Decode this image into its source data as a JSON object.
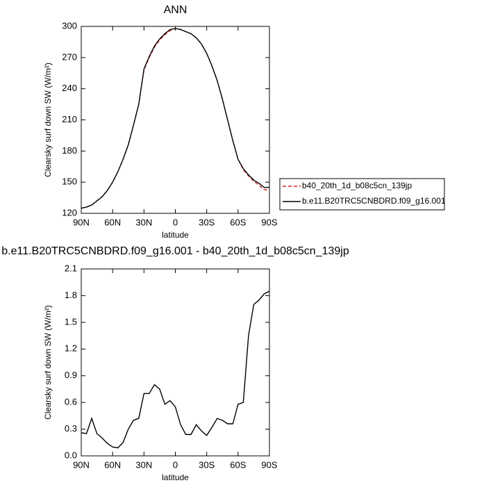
{
  "chart_data": [
    {
      "type": "line",
      "title": "ANN",
      "xlabel": "latitude",
      "ylabel": "Clearsky surf down SW (W/m²)",
      "x": [
        90,
        85,
        80,
        75,
        70,
        65,
        60,
        55,
        50,
        45,
        40,
        35,
        30,
        25,
        20,
        15,
        10,
        5,
        0,
        -5,
        -10,
        -15,
        -20,
        -25,
        -30,
        -35,
        -40,
        -45,
        -50,
        -55,
        -60,
        -65,
        -70,
        -75,
        -80,
        -85,
        -90
      ],
      "series": [
        {
          "name": "b40_20th_1d_b08c5cn_139jp",
          "color": "#d62020",
          "style": "dashed",
          "values": [
            125,
            126,
            128,
            132,
            136,
            142,
            150,
            160,
            172,
            186,
            205,
            225,
            258,
            270,
            280,
            287,
            292,
            296,
            298,
            297,
            295,
            293,
            289,
            283,
            274,
            262,
            248,
            230,
            210,
            190,
            172,
            162,
            156,
            151,
            147,
            143,
            142
          ]
        },
        {
          "name": "b.e11.B20TRC5CNBDRD.f09_g16.001",
          "color": "#000000",
          "style": "solid",
          "values": [
            125,
            126,
            128,
            132,
            136,
            142,
            150,
            160,
            172,
            186,
            205,
            225,
            259,
            271,
            281,
            288,
            293,
            297,
            298,
            297,
            295,
            293,
            289,
            283,
            274,
            262,
            248,
            230,
            210,
            190,
            172,
            163,
            157,
            152,
            149,
            145,
            145
          ]
        }
      ],
      "xlim": [
        90,
        -90
      ],
      "xticks": [
        {
          "value": 90,
          "label": "90N"
        },
        {
          "value": 60,
          "label": "60N"
        },
        {
          "value": 30,
          "label": "30N"
        },
        0,
        {
          "value": -30,
          "label": "30S"
        },
        {
          "value": -60,
          "label": "60S"
        },
        {
          "value": -90,
          "label": "90S"
        }
      ],
      "ylim": [
        120,
        300
      ],
      "yticks": [
        120,
        150,
        180,
        210,
        240,
        270,
        300
      ],
      "legend": "right"
    },
    {
      "type": "line",
      "title": "b.e11.B20TRC5CNBDRD.f09_g16.001 - b40_20th_1d_b08c5cn_139jp",
      "xlabel": "latitude",
      "ylabel": "Clearsky surf down SW (W/m²)",
      "x": [
        90,
        85,
        80,
        75,
        70,
        65,
        60,
        55,
        50,
        45,
        40,
        35,
        30,
        25,
        20,
        15,
        10,
        5,
        0,
        -5,
        -10,
        -15,
        -20,
        -25,
        -30,
        -35,
        -40,
        -45,
        -50,
        -55,
        -60,
        -65,
        -70,
        -75,
        -80,
        -85,
        -90
      ],
      "color": "#000000",
      "values": [
        0.26,
        0.25,
        0.42,
        0.25,
        0.2,
        0.14,
        0.1,
        0.09,
        0.15,
        0.3,
        0.4,
        0.42,
        0.7,
        0.7,
        0.8,
        0.75,
        0.58,
        0.62,
        0.55,
        0.35,
        0.24,
        0.24,
        0.35,
        0.28,
        0.23,
        0.32,
        0.42,
        0.4,
        0.36,
        0.36,
        0.58,
        0.6,
        1.35,
        1.7,
        1.75,
        1.82,
        1.85
      ],
      "xlim": [
        90,
        -90
      ],
      "xticks": [
        {
          "value": 90,
          "label": "90N"
        },
        {
          "value": 60,
          "label": "60N"
        },
        {
          "value": 30,
          "label": "30N"
        },
        0,
        {
          "value": -30,
          "label": "30S"
        },
        {
          "value": -60,
          "label": "60S"
        },
        {
          "value": -90,
          "label": "90S"
        }
      ],
      "ylim": [
        0,
        2.1
      ],
      "yticks": [
        {
          "value": 0,
          "label": "0.0"
        },
        0.3,
        0.6,
        0.9,
        1.2,
        1.5,
        1.8,
        2.1
      ]
    }
  ]
}
